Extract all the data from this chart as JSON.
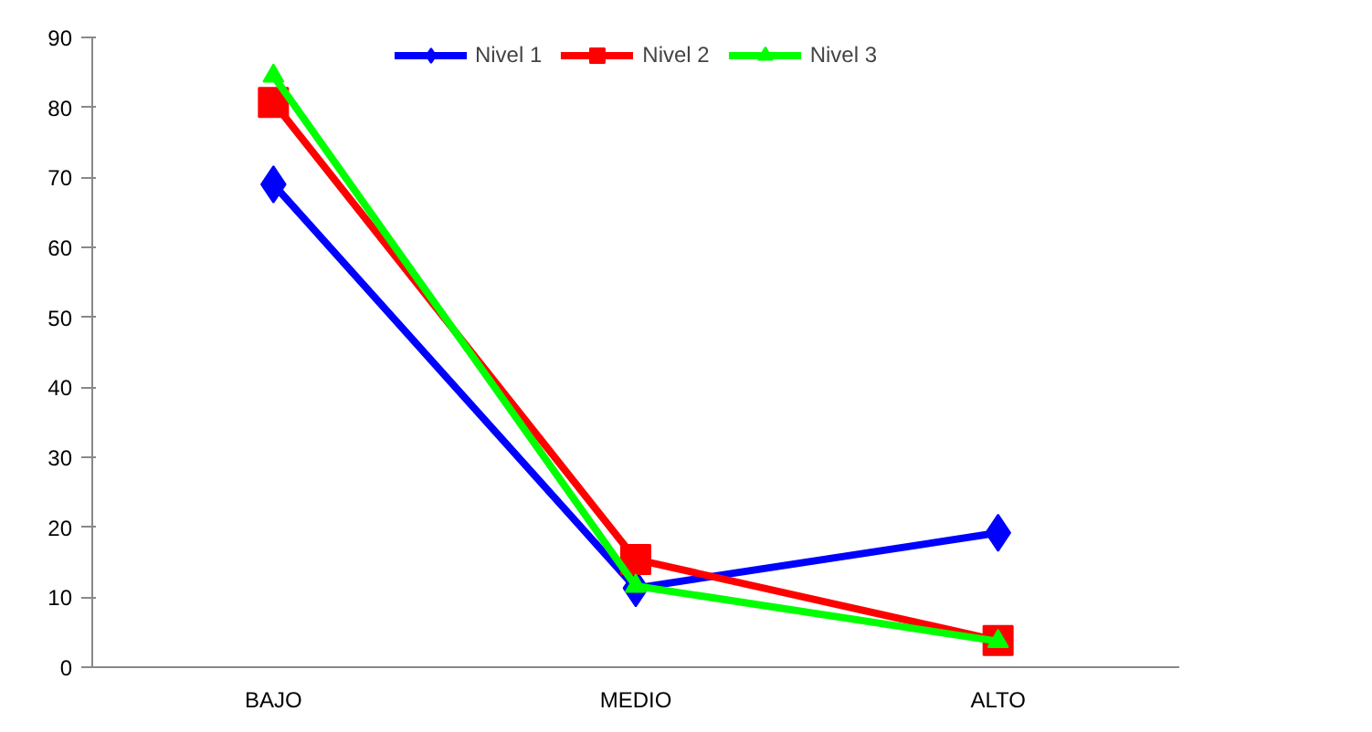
{
  "chart_data": {
    "type": "line",
    "categories": [
      "BAJO",
      "MEDIO",
      "ALTO"
    ],
    "series": [
      {
        "name": "Nivel 1",
        "color": "#0000ff",
        "marker": "diamond",
        "values": [
          69,
          11.3,
          19.2
        ]
      },
      {
        "name": "Nivel 2",
        "color": "#ff0000",
        "marker": "square",
        "values": [
          80.7,
          15.4,
          3.8
        ]
      },
      {
        "name": "Nivel 3",
        "color": "#00ff00",
        "marker": "triangle",
        "values": [
          84.5,
          11.6,
          3.7
        ]
      }
    ],
    "ylim": [
      0,
      90
    ],
    "yticks": [
      0,
      10,
      20,
      30,
      40,
      50,
      60,
      70,
      80,
      90
    ],
    "grid": false,
    "legend": "top"
  }
}
